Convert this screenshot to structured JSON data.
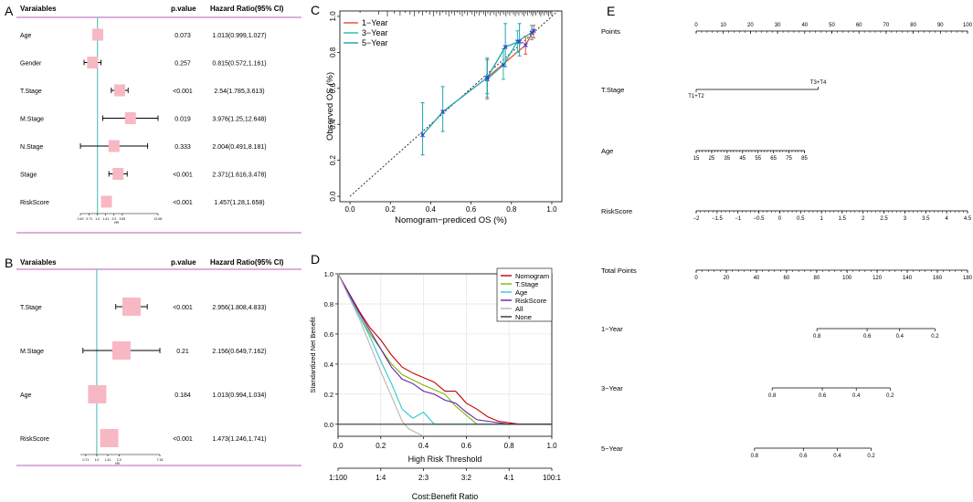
{
  "panels": {
    "A": {
      "letter": "A",
      "headers": {
        "variable": "Varaiables",
        "pvalue": "p.value",
        "hr": "Hazard Ratio(95% CI)"
      },
      "rows": [
        {
          "variable": "Age",
          "pvalue": "0.073",
          "hr_text": "1.013(0.999,1.027)",
          "hr": 1.013,
          "lo": 0.999,
          "hi": 1.027
        },
        {
          "variable": "Gender",
          "pvalue": "0.257",
          "hr_text": "0.815(0.572,1.161)",
          "hr": 0.815,
          "lo": 0.572,
          "hi": 1.161
        },
        {
          "variable": "T.Stage",
          "pvalue": "<0.001",
          "hr_text": "2.54(1.785,3.613)",
          "hr": 2.54,
          "lo": 1.785,
          "hi": 3.613
        },
        {
          "variable": "M.Stage",
          "pvalue": "0.019",
          "hr_text": "3.976(1.25,12.648)",
          "hr": 3.976,
          "lo": 1.25,
          "hi": 12.648
        },
        {
          "variable": "N.Stage",
          "pvalue": "0.333",
          "hr_text": "2.004(0.491,8.181)",
          "hr": 2.004,
          "lo": 0.491,
          "hi": 8.181
        },
        {
          "variable": "Stage",
          "pvalue": "<0.001",
          "hr_text": "2.371(1.616,3.478)",
          "hr": 2.371,
          "lo": 1.616,
          "hi": 3.478
        },
        {
          "variable": "RiskScore",
          "pvalue": "<0.001",
          "hr_text": "1.457(1.28,1.658)",
          "hr": 1.457,
          "lo": 1.28,
          "hi": 1.658
        }
      ],
      "ticks": [
        "0.49",
        "0.71",
        "1.0",
        "1.41",
        "2.0",
        "2.83",
        "12.65"
      ],
      "tick_values": [
        0.49,
        0.71,
        1.0,
        1.41,
        2.0,
        2.83,
        12.65
      ],
      "xmin": 0.49,
      "xmax": 12.65,
      "xlabel": "HR"
    },
    "B": {
      "letter": "B",
      "headers": {
        "variable": "Varaiables",
        "pvalue": "p.value",
        "hr": "Hazard Ratio(95% CI)"
      },
      "rows": [
        {
          "variable": "T.Stage",
          "pvalue": "<0.001",
          "hr_text": "2.956(1.808,4.833)",
          "hr": 2.956,
          "lo": 1.808,
          "hi": 4.833
        },
        {
          "variable": "M.Stage",
          "pvalue": "0.21",
          "hr_text": "2.156(0.649,7.162)",
          "hr": 2.156,
          "lo": 0.649,
          "hi": 7.162
        },
        {
          "variable": "Age",
          "pvalue": "0.184",
          "hr_text": "1.013(0.994,1.034)",
          "hr": 1.013,
          "lo": 0.994,
          "hi": 1.034
        },
        {
          "variable": "RiskScore",
          "pvalue": "<0.001",
          "hr_text": "1.473(1.246,1.741)",
          "hr": 1.473,
          "lo": 1.246,
          "hi": 1.741
        }
      ],
      "ticks": [
        "0.71",
        "1.0",
        "1.41",
        "2.0",
        "7.16"
      ],
      "tick_values": [
        0.71,
        1.0,
        1.41,
        2.0,
        7.16
      ],
      "xmin": 0.6,
      "xmax": 7.16,
      "xlabel": "HR"
    },
    "C": {
      "letter": "C"
    },
    "D": {
      "letter": "D"
    },
    "E": {
      "letter": "E"
    }
  },
  "chart_data": [
    {
      "id": "C",
      "type": "line",
      "title": "",
      "xlabel": "Nomogram−prediced OS (%)",
      "ylabel": "Observed OS (%)",
      "xlim": [
        -0.05,
        1.05
      ],
      "ylim": [
        -0.03,
        1.03
      ],
      "xticks": [
        "0.0",
        "0.2",
        "0.4",
        "0.6",
        "0.8",
        "1.0"
      ],
      "yticks": [
        "0.0",
        "0.2",
        "0.4",
        "0.6",
        "0.8",
        "1.0"
      ],
      "legend": [
        "1−Year",
        "3−Year",
        "5−Year"
      ],
      "legend_position": "top-left",
      "series": [
        {
          "name": "1−Year",
          "color": "#e8483d",
          "points": [
            {
              "x": 0.68,
              "y": 0.66,
              "lo": 0.55,
              "hi": 0.76
            },
            {
              "x": 0.87,
              "y": 0.84,
              "lo": 0.79,
              "hi": 0.89
            },
            {
              "x": 0.91,
              "y": 0.92,
              "lo": 0.88,
              "hi": 0.95
            }
          ]
        },
        {
          "name": "3−Year",
          "color": "#2fb5a8",
          "points": [
            {
              "x": 0.68,
              "y": 0.65,
              "lo": 0.54,
              "hi": 0.77
            },
            {
              "x": 0.76,
              "y": 0.73,
              "lo": 0.65,
              "hi": 0.82
            },
            {
              "x": 0.83,
              "y": 0.86,
              "lo": 0.8,
              "hi": 0.92
            },
            {
              "x": 0.9,
              "y": 0.91,
              "lo": 0.87,
              "hi": 0.95
            }
          ]
        },
        {
          "name": "5−Year",
          "color": "#1aa3b0",
          "points": [
            {
              "x": 0.36,
              "y": 0.34,
              "lo": 0.23,
              "hi": 0.52
            },
            {
              "x": 0.46,
              "y": 0.47,
              "lo": 0.36,
              "hi": 0.61
            },
            {
              "x": 0.68,
              "y": 0.66,
              "lo": 0.57,
              "hi": 0.76
            },
            {
              "x": 0.77,
              "y": 0.83,
              "lo": 0.72,
              "hi": 0.96
            },
            {
              "x": 0.84,
              "y": 0.86,
              "lo": 0.78,
              "hi": 0.96
            }
          ]
        }
      ]
    },
    {
      "id": "D",
      "type": "line",
      "title": "",
      "xlabel": "High Risk Threshold",
      "ylabel": "Standardized Net Benefit",
      "x2label": "Cost:Benefit Ratio",
      "xlim": [
        0,
        1
      ],
      "ylim": [
        -0.08,
        1.0
      ],
      "xticks": [
        "0.0",
        "0.2",
        "0.4",
        "0.6",
        "0.8",
        "1.0"
      ],
      "yticks": [
        "0.0",
        "0.2",
        "0.4",
        "0.6",
        "0.8",
        "1.0"
      ],
      "x2ticks": [
        "1:100",
        "1:4",
        "2:3",
        "3:2",
        "4:1",
        "100:1"
      ],
      "legend": [
        "Nomogram",
        "T.Stage",
        "Age",
        "RiskScore",
        "All",
        "None"
      ],
      "legend_position": "top-right",
      "grid": true,
      "series": [
        {
          "name": "Nomogram",
          "color": "#c40000",
          "x": [
            0.0,
            0.1,
            0.15,
            0.2,
            0.25,
            0.3,
            0.35,
            0.4,
            0.45,
            0.5,
            0.55,
            0.6,
            0.65,
            0.7,
            0.75,
            0.8,
            0.85,
            0.9,
            1.0
          ],
          "y": [
            1.0,
            0.75,
            0.64,
            0.56,
            0.46,
            0.38,
            0.34,
            0.31,
            0.28,
            0.22,
            0.22,
            0.14,
            0.1,
            0.05,
            0.02,
            0.01,
            0.0,
            0.0,
            0.0
          ]
        },
        {
          "name": "T.Stage",
          "color": "#7ab800",
          "x": [
            0.0,
            0.1,
            0.15,
            0.2,
            0.25,
            0.3,
            0.4,
            0.5,
            0.55,
            0.6,
            0.65,
            1.0
          ],
          "y": [
            1.0,
            0.72,
            0.6,
            0.5,
            0.4,
            0.33,
            0.26,
            0.2,
            0.12,
            0.06,
            0.0,
            0.0
          ]
        },
        {
          "name": "Age",
          "color": "#2ec9c9",
          "x": [
            0.0,
            0.1,
            0.15,
            0.2,
            0.25,
            0.3,
            0.35,
            0.4,
            0.45,
            1.0
          ],
          "y": [
            1.0,
            0.72,
            0.58,
            0.42,
            0.27,
            0.1,
            0.04,
            0.08,
            0.0,
            0.0
          ]
        },
        {
          "name": "RiskScore",
          "color": "#6a1aa8",
          "x": [
            0.0,
            0.1,
            0.15,
            0.2,
            0.25,
            0.3,
            0.35,
            0.4,
            0.45,
            0.5,
            0.55,
            0.6,
            0.65,
            0.7,
            0.8,
            0.9,
            1.0
          ],
          "y": [
            1.0,
            0.74,
            0.62,
            0.5,
            0.38,
            0.3,
            0.27,
            0.22,
            0.2,
            0.16,
            0.14,
            0.08,
            0.03,
            0.02,
            0.0,
            0.0,
            0.0
          ]
        },
        {
          "name": "All",
          "color": "#b5b5b5",
          "x": [
            0.0,
            0.1,
            0.2,
            0.3,
            0.33,
            0.4
          ],
          "y": [
            1.0,
            0.7,
            0.35,
            0.02,
            -0.03,
            -0.08
          ]
        },
        {
          "name": "None",
          "color": "#333333",
          "x": [
            0.0,
            1.0
          ],
          "y": [
            0.0,
            0.0
          ]
        }
      ]
    },
    {
      "id": "E",
      "type": "nomogram",
      "title": "",
      "rows": [
        {
          "label": "Points",
          "ticks": [
            "0",
            "10",
            "20",
            "30",
            "40",
            "50",
            "60",
            "70",
            "80",
            "90",
            "100"
          ],
          "tick_values": [
            0,
            10,
            20,
            30,
            40,
            50,
            60,
            70,
            80,
            90,
            100
          ],
          "point_range": [
            0,
            100
          ],
          "minor": true
        },
        {
          "label": "T.Stage",
          "ticks": [
            "T1+T2",
            "T3+T4"
          ],
          "tick_values": [
            0,
            45
          ],
          "point_range": [
            0,
            45
          ],
          "minor": false
        },
        {
          "label": "Age",
          "ticks": [
            "15",
            "25",
            "35",
            "45",
            "55",
            "65",
            "75",
            "85"
          ],
          "tick_values": [
            0,
            5.7,
            11.4,
            17.1,
            22.8,
            28.5,
            34.2,
            39.9
          ],
          "point_range": [
            0,
            39.9
          ],
          "minor": true
        },
        {
          "label": "RiskScore",
          "ticks": [
            "−2",
            "−1.5",
            "−1",
            "−0.5",
            "0",
            "0.5",
            "1",
            "1.5",
            "2",
            "2.5",
            "3",
            "3.5",
            "4",
            "4.5"
          ],
          "tick_values": [
            0,
            7.7,
            15.4,
            23.1,
            30.8,
            38.5,
            46.2,
            53.8,
            61.5,
            69.2,
            76.9,
            84.6,
            92.3,
            100
          ],
          "point_range": [
            0,
            100
          ],
          "minor": true
        },
        {
          "label": "Total Points",
          "ticks": [
            "0",
            "20",
            "40",
            "60",
            "80",
            "100",
            "120",
            "140",
            "160",
            "180"
          ],
          "tick_values": [
            0,
            11.1,
            22.2,
            33.3,
            44.4,
            55.6,
            66.7,
            77.8,
            88.9,
            100
          ],
          "point_range": [
            0,
            100
          ],
          "minor": true
        },
        {
          "label": "1−Year",
          "ticks": [
            "0.8",
            "0.6",
            "0.4",
            "0.2"
          ],
          "tick_values": [
            44.5,
            63,
            75,
            88
          ],
          "point_range": [
            44.5,
            88
          ],
          "minor": false
        },
        {
          "label": "3−Year",
          "ticks": [
            "0.8",
            "0.6",
            "0.4",
            "0.2"
          ],
          "tick_values": [
            28,
            46.5,
            59,
            71.5
          ],
          "point_range": [
            28,
            71.5
          ],
          "minor": false
        },
        {
          "label": "5−Year",
          "ticks": [
            "0.8",
            "0.6",
            "0.4",
            "0.2"
          ],
          "tick_values": [
            21.5,
            39.5,
            52,
            64.5
          ],
          "point_range": [
            21.5,
            64.5
          ],
          "minor": false
        }
      ]
    }
  ]
}
